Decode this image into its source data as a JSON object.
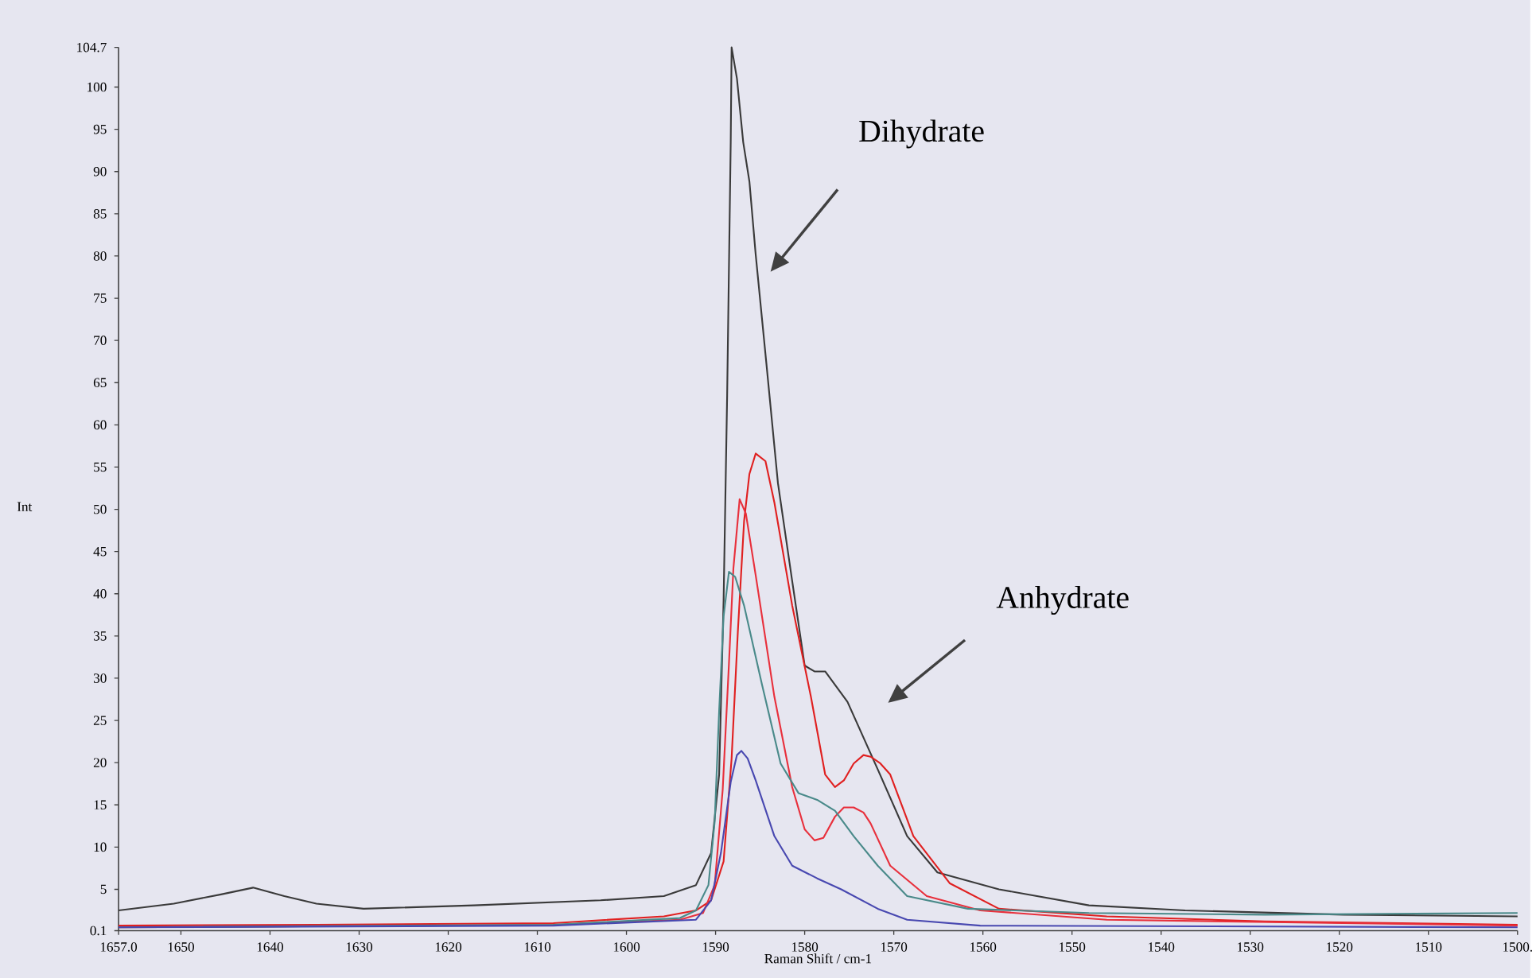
{
  "chart_data": {
    "type": "line",
    "xlabel": "Raman Shift / cm-1",
    "ylabel": "Int",
    "xlim": [
      1657.0,
      1500
    ],
    "ylim": [
      0.1,
      104.7
    ],
    "xticks": [
      {
        "value": 1657.0,
        "label": "1657.0"
      },
      1650,
      1640,
      1630,
      1620,
      1610,
      1600,
      1590,
      1580,
      1570,
      1560,
      1550,
      1540,
      1530,
      1520,
      1510,
      {
        "value": 1500,
        "label": "1500."
      }
    ],
    "yticks": [
      0.1,
      5,
      10,
      15,
      20,
      25,
      30,
      35,
      40,
      45,
      50,
      55,
      60,
      65,
      70,
      75,
      80,
      85,
      90,
      95,
      100,
      104.7
    ],
    "grid": false,
    "marker": "none",
    "series": [
      {
        "color": "#3a3a3a",
        "x": [
          1657.0,
          1650.8,
          1645.5,
          1641.9,
          1638.4,
          1634.8,
          1629.5,
          1617.1,
          1602.9,
          1595.8,
          1592.2,
          1590.5,
          1589.6,
          1589.1,
          1588.7,
          1588.3,
          1588.2,
          1587.6,
          1586.9,
          1586.2,
          1585.5,
          1584.3,
          1583.0,
          1581.4,
          1580.0,
          1578.9,
          1577.7,
          1575.2,
          1571.8,
          1568.5,
          1565.1,
          1558.2,
          1548.1,
          1537.3,
          1519.5,
          1500.0
        ],
        "values": [
          2.5,
          3.3,
          4.4,
          5.2,
          4.2,
          3.3,
          2.7,
          3.1,
          3.7,
          4.2,
          5.5,
          9.3,
          18.6,
          39.2,
          63.5,
          93.5,
          104.7,
          101.0,
          93.5,
          88.8,
          80.2,
          67.3,
          53.1,
          41.5,
          31.5,
          30.8,
          30.8,
          27.2,
          19.2,
          11.3,
          7.0,
          5.0,
          3.1,
          2.5,
          2.0,
          1.8
        ]
      },
      {
        "color": "#e02020",
        "x": [
          1657.0,
          1634.8,
          1608.2,
          1595.8,
          1592.2,
          1590.5,
          1589.1,
          1588.2,
          1587.5,
          1586.8,
          1586.2,
          1585.5,
          1584.4,
          1583.4,
          1581.4,
          1579.3,
          1577.7,
          1576.6,
          1575.6,
          1574.5,
          1573.4,
          1572.6,
          1571.5,
          1570.4,
          1567.8,
          1563.7,
          1558.2,
          1546.1,
          1528.4,
          1500.0
        ],
        "values": [
          0.7,
          0.8,
          1.0,
          1.8,
          2.5,
          3.7,
          8.3,
          20.5,
          35.5,
          48.6,
          54.2,
          56.6,
          55.7,
          50.8,
          38.6,
          27.8,
          18.6,
          17.1,
          17.9,
          19.9,
          20.9,
          20.7,
          19.9,
          18.6,
          11.3,
          5.7,
          2.7,
          1.8,
          1.2,
          0.8
        ]
      },
      {
        "color": "#e8303c",
        "x": [
          1657.0,
          1608.2,
          1594.0,
          1591.4,
          1590.1,
          1589.2,
          1588.5,
          1588.0,
          1587.3,
          1586.6,
          1585.5,
          1583.4,
          1581.4,
          1580.0,
          1578.9,
          1577.9,
          1576.6,
          1575.6,
          1574.5,
          1573.4,
          1572.6,
          1570.4,
          1566.3,
          1560.3,
          1546.1,
          1500.0
        ],
        "values": [
          0.5,
          0.8,
          1.4,
          2.2,
          5.5,
          16.8,
          31.7,
          43.0,
          51.2,
          49.5,
          42.2,
          27.8,
          17.1,
          12.1,
          10.8,
          11.1,
          13.6,
          14.7,
          14.7,
          14.1,
          12.8,
          7.8,
          4.2,
          2.5,
          1.4,
          0.7
        ]
      },
      {
        "color": "#4a8a8a",
        "x": [
          1657.0,
          1608.2,
          1594.0,
          1592.2,
          1590.8,
          1590.1,
          1589.6,
          1589.1,
          1588.5,
          1587.8,
          1586.8,
          1584.8,
          1582.7,
          1580.7,
          1578.6,
          1576.6,
          1574.5,
          1571.8,
          1568.5,
          1561.7,
          1548.1,
          1528.4,
          1500.0
        ],
        "values": [
          0.5,
          0.8,
          1.6,
          2.5,
          5.5,
          13.0,
          26.1,
          37.3,
          42.6,
          42.0,
          38.6,
          29.3,
          19.9,
          16.4,
          15.6,
          14.3,
          11.3,
          7.8,
          4.2,
          2.7,
          2.2,
          2.0,
          2.2
        ]
      },
      {
        "color": "#4848b0",
        "x": [
          1657.0,
          1608.2,
          1592.2,
          1590.5,
          1589.4,
          1588.3,
          1587.6,
          1587.1,
          1586.4,
          1585.5,
          1583.4,
          1581.4,
          1578.6,
          1575.9,
          1571.8,
          1568.5,
          1560.3,
          1500.0
        ],
        "values": [
          0.5,
          0.7,
          1.4,
          3.7,
          9.3,
          17.7,
          20.9,
          21.4,
          20.5,
          17.9,
          11.3,
          7.8,
          6.3,
          5.0,
          2.7,
          1.4,
          0.7,
          0.5
        ]
      }
    ],
    "annotations": [
      "Dihydrate",
      "Anhydrate"
    ]
  }
}
